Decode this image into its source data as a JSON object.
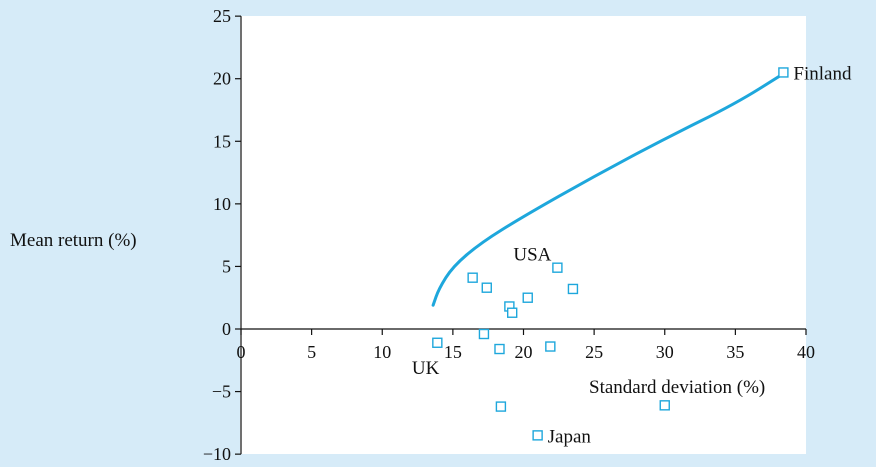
{
  "colors": {
    "background": "#d6ebf8",
    "plot_area": "#ffffff",
    "series": "#1ea7dc",
    "axis": "#111111"
  },
  "chart_data": {
    "type": "scatter",
    "xlabel": "Standard deviation (%)",
    "ylabel": "Mean return (%)",
    "xlim": [
      0,
      40
    ],
    "ylim": [
      -10,
      25
    ],
    "x_ticks": [
      0,
      5,
      10,
      15,
      20,
      25,
      30,
      35,
      40
    ],
    "x_tick_labels": [
      "0",
      "5",
      "10",
      "15",
      "20",
      "25",
      "30",
      "35",
      "40"
    ],
    "y_ticks": [
      -10,
      -5,
      0,
      5,
      10,
      15,
      20,
      25
    ],
    "y_tick_labels": [
      "−10",
      "−5",
      "0",
      "5",
      "10",
      "15",
      "20",
      "25"
    ],
    "grid": false,
    "frontier": {
      "points": [
        [
          13.6,
          1.9
        ],
        [
          14.0,
          3.2
        ],
        [
          15.0,
          5.0
        ],
        [
          17.0,
          6.9
        ],
        [
          20.0,
          9.0
        ],
        [
          25.0,
          12.2
        ],
        [
          30.0,
          15.2
        ],
        [
          35.0,
          18.0
        ],
        [
          38.4,
          20.4
        ]
      ]
    },
    "points": [
      {
        "x": 38.4,
        "y": 20.5,
        "label": "Finland",
        "label_pos": "right"
      },
      {
        "x": 22.4,
        "y": 4.9,
        "label": "USA",
        "label_pos": "left-above"
      },
      {
        "x": 13.9,
        "y": -1.1,
        "label": "UK",
        "label_pos": "left-below"
      },
      {
        "x": 21.0,
        "y": -8.5,
        "label": "Japan",
        "label_pos": "right"
      },
      {
        "x": 16.4,
        "y": 4.1,
        "label": ""
      },
      {
        "x": 17.4,
        "y": 3.3,
        "label": ""
      },
      {
        "x": 19.0,
        "y": 1.8,
        "label": ""
      },
      {
        "x": 19.2,
        "y": 1.3,
        "label": ""
      },
      {
        "x": 20.3,
        "y": 2.5,
        "label": ""
      },
      {
        "x": 23.5,
        "y": 3.2,
        "label": ""
      },
      {
        "x": 17.2,
        "y": -0.4,
        "label": ""
      },
      {
        "x": 18.3,
        "y": -1.6,
        "label": ""
      },
      {
        "x": 21.9,
        "y": -1.4,
        "label": ""
      },
      {
        "x": 18.4,
        "y": -6.2,
        "label": ""
      },
      {
        "x": 30.0,
        "y": -6.1,
        "label": ""
      }
    ]
  }
}
